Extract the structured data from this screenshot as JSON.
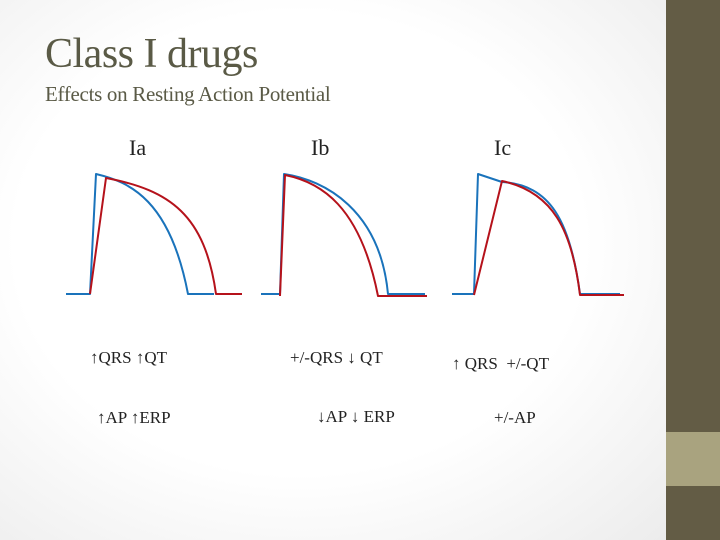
{
  "slide": {
    "title": "Class I drugs",
    "subtitle": "Effects on Resting Action Potential"
  },
  "colors": {
    "baseline_curve": "#1a73bb",
    "drug_curve": "#b5121b",
    "side_dark": "#635c45",
    "side_light": "#a9a37f",
    "title_text": "#5a5a46"
  },
  "panels": [
    {
      "label": "Ia",
      "effect_line1": "↑QRS ↑QT",
      "effect_line2": "↑AP ↑ERP"
    },
    {
      "label": "Ib",
      "effect_line1": "+/-QRS ↓ QT",
      "effect_line2": "↓AP ↓ ERP"
    },
    {
      "label": "Ic",
      "effect_line1": "↑ QRS  +/-QT",
      "effect_line2": "+/-AP"
    }
  ]
}
